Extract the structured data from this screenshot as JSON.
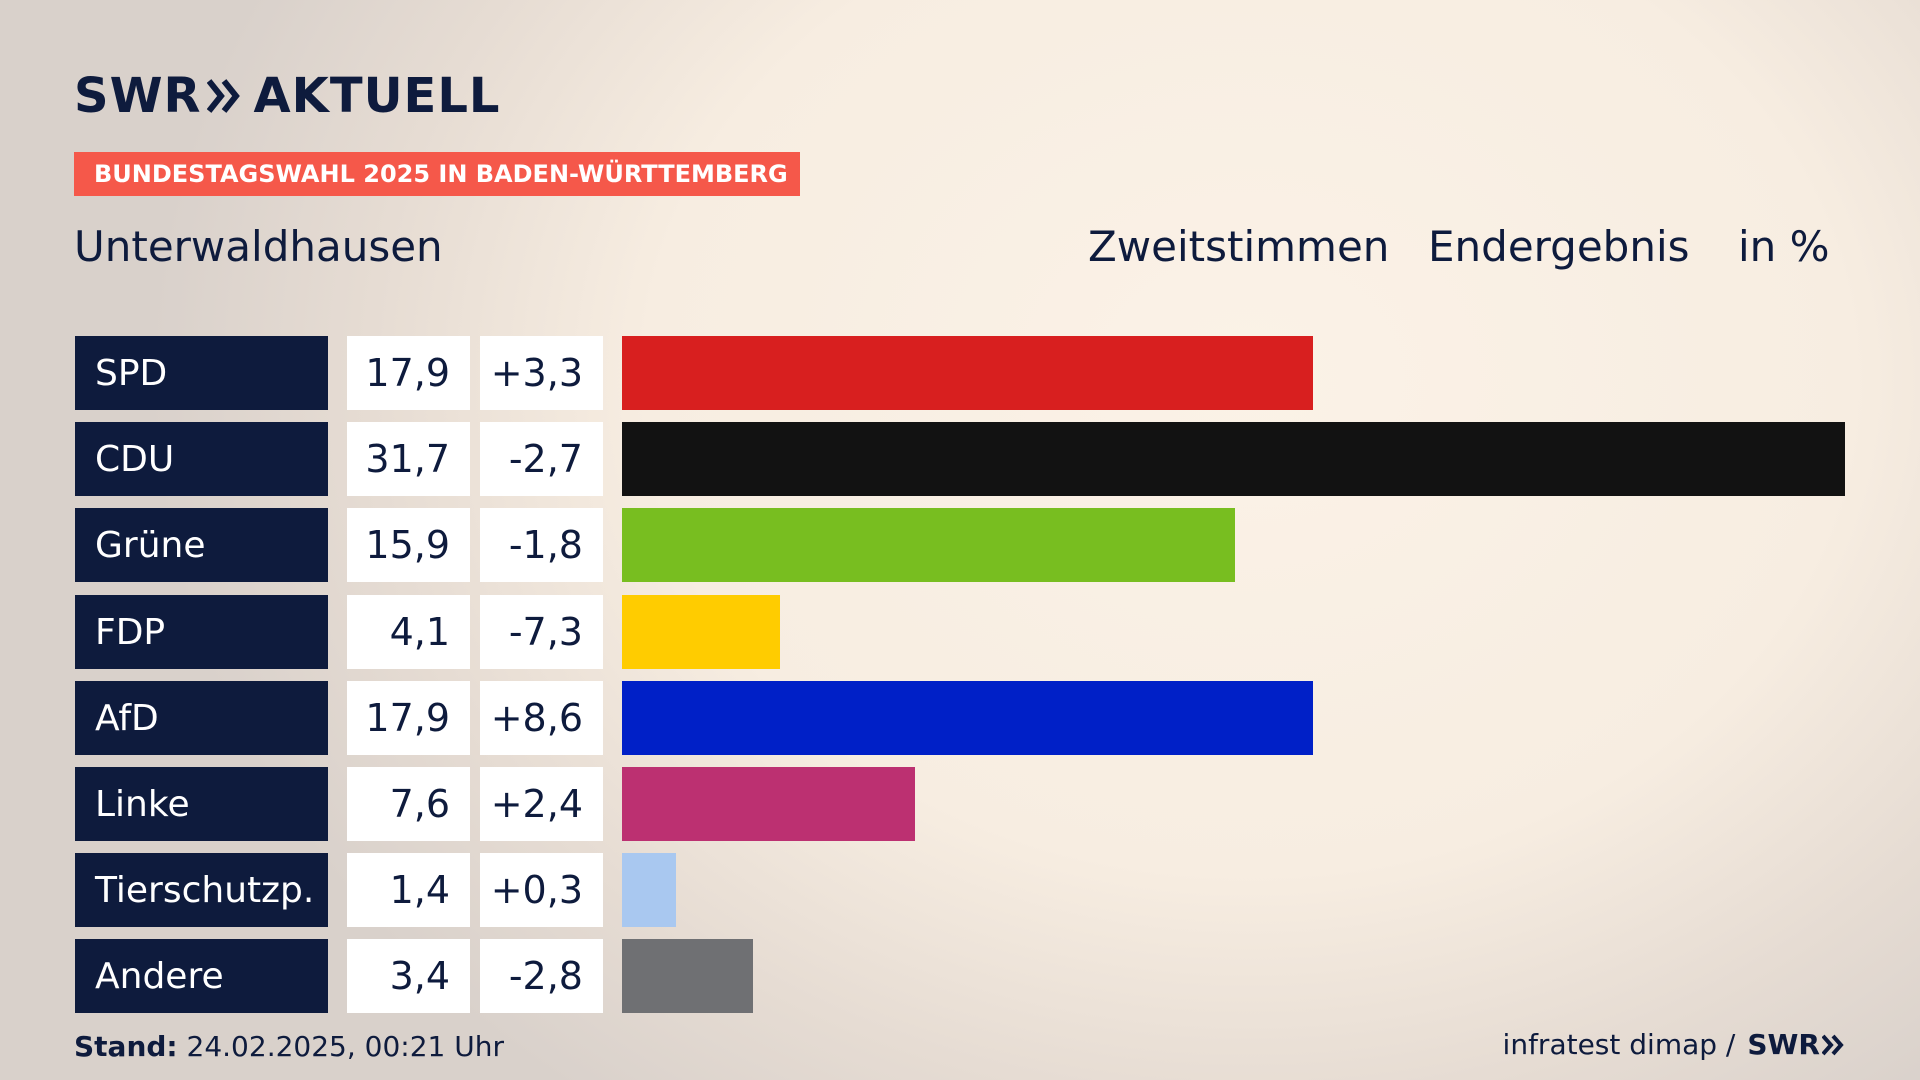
{
  "brand": {
    "name": "SWR",
    "product": "AKTUELL"
  },
  "tag": "BUNDESTAGSWAHL 2025 IN BADEN-WÜRTTEMBERG",
  "place": "Unterwaldhausen",
  "header": {
    "vote_type": "Zweitstimmen",
    "status": "Endergebnis",
    "unit": "in %"
  },
  "colors": {
    "navy": "#0e1b3d",
    "tag": "#f5584a"
  },
  "chart_data": {
    "type": "bar",
    "orientation": "horizontal",
    "title": "Unterwaldhausen – Zweitstimmen Endergebnis in %",
    "categories": [
      "SPD",
      "CDU",
      "Grüne",
      "FDP",
      "AfD",
      "Linke",
      "Tierschutzp.",
      "Andere"
    ],
    "values": [
      17.9,
      31.7,
      15.9,
      4.1,
      17.9,
      7.6,
      1.4,
      3.4
    ],
    "value_labels": [
      "17,9",
      "31,7",
      "15,9",
      "4,1",
      "17,9",
      "7,6",
      "1,4",
      "3,4"
    ],
    "changes": [
      3.3,
      -2.7,
      -1.8,
      -7.3,
      8.6,
      2.4,
      0.3,
      -2.8
    ],
    "change_labels": [
      "+3,3",
      "-2,7",
      "-1,8",
      "-7,3",
      "+8,6",
      "+2,4",
      "+0,3",
      "-2,8"
    ],
    "colors": [
      "#d81f1f",
      "#121212",
      "#78be20",
      "#ffcc00",
      "#0020c7",
      "#bc3071",
      "#a9c8f0",
      "#6f7073"
    ],
    "xlim": [
      0,
      31.7
    ]
  },
  "footer": {
    "stand_label": "Stand:",
    "stand_value": "24.02.2025, 00:21 Uhr",
    "source": "infratest dimap /",
    "source_brand": "SWR"
  }
}
